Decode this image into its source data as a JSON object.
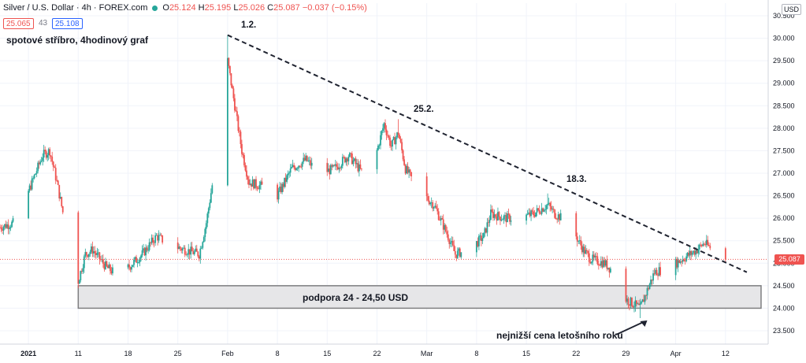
{
  "header": {
    "symbol": "Silver / U.S. Dollar · 4h · FOREX.com",
    "ohlc": {
      "o_label": "O",
      "o": "25.124",
      "h_label": "H",
      "h": "25.195",
      "l_label": "L",
      "l": "25.026",
      "c_label": "C",
      "c": "25.087",
      "change": "−0.037 (−0.15%)"
    },
    "bid": "25.065",
    "spread": "43",
    "ask": "25.108",
    "currency": "USD",
    "last_price": "25.087"
  },
  "annotations": {
    "chart_title": "spotové stříbro, 4hodinový graf",
    "peak1": "1.2.",
    "peak2": "25.2.",
    "peak3": "18.3.",
    "support": "podpora 24 - 24,50 USD",
    "low": "nejnižší cena letošního roku"
  },
  "colors": {
    "up": "#26a69a",
    "down": "#ef5350",
    "support_fill": "#e6e6e8",
    "support_border": "#7e7e80",
    "trendline": "#1f2330",
    "last_price_line": "#ef5350"
  },
  "chart_data": {
    "type": "candlestick",
    "timeframe": "4h",
    "y_axis": {
      "min": 23.5,
      "max": 30.5,
      "ticks": [
        "30.500",
        "30.000",
        "29.500",
        "29.000",
        "28.500",
        "28.000",
        "27.500",
        "27.000",
        "26.500",
        "26.000",
        "25.500",
        "25.000",
        "24.500",
        "24.000",
        "23.500"
      ]
    },
    "x_axis": {
      "start": "2020-12-31",
      "end": "2021-04-18",
      "ticks": [
        {
          "label": "2021",
          "date": "2021-01-04"
        },
        {
          "label": "11",
          "date": "2021-01-11"
        },
        {
          "label": "18",
          "date": "2021-01-18"
        },
        {
          "label": "25",
          "date": "2021-01-25"
        },
        {
          "label": "Feb",
          "date": "2021-02-01"
        },
        {
          "label": "8",
          "date": "2021-02-08"
        },
        {
          "label": "15",
          "date": "2021-02-15"
        },
        {
          "label": "22",
          "date": "2021-02-22"
        },
        {
          "label": "Mar",
          "date": "2021-03-01"
        },
        {
          "label": "8",
          "date": "2021-03-08"
        },
        {
          "label": "15",
          "date": "2021-03-15"
        },
        {
          "label": "22",
          "date": "2021-03-22"
        },
        {
          "label": "29",
          "date": "2021-03-29"
        },
        {
          "label": "Apr",
          "date": "2021-04-05"
        },
        {
          "label": "12",
          "date": "2021-04-12"
        }
      ]
    },
    "price_path": [
      {
        "date": "2020-12-31",
        "close": 25.8
      },
      {
        "date": "2021-01-02",
        "close": 25.9
      },
      {
        "date": "2021-01-04",
        "close": 26.6
      },
      {
        "date": "2021-01-06",
        "close": 27.4
      },
      {
        "date": "2021-01-07",
        "close": 27.5
      },
      {
        "date": "2021-01-08",
        "close": 26.8
      },
      {
        "date": "2021-01-09",
        "close": 26.0
      },
      {
        "date": "2021-01-10",
        "close": 25.0
      },
      {
        "date": "2021-01-11",
        "close": 24.6
      },
      {
        "date": "2021-01-12",
        "close": 25.2
      },
      {
        "date": "2021-01-13",
        "close": 25.3
      },
      {
        "date": "2021-01-15",
        "close": 24.9
      },
      {
        "date": "2021-01-17",
        "close": 24.7
      },
      {
        "date": "2021-01-18",
        "close": 24.9
      },
      {
        "date": "2021-01-20",
        "close": 25.2
      },
      {
        "date": "2021-01-22",
        "close": 25.6
      },
      {
        "date": "2021-01-24",
        "close": 25.4
      },
      {
        "date": "2021-01-26",
        "close": 25.3
      },
      {
        "date": "2021-01-28",
        "close": 25.2
      },
      {
        "date": "2021-01-29",
        "close": 25.9
      },
      {
        "date": "2021-01-30",
        "close": 26.9
      },
      {
        "date": "2021-02-01",
        "close": 29.5
      },
      {
        "date": "2021-02-02",
        "close": 28.5
      },
      {
        "date": "2021-02-03",
        "close": 27.5
      },
      {
        "date": "2021-02-04",
        "close": 26.8
      },
      {
        "date": "2021-02-06",
        "close": 26.7
      },
      {
        "date": "2021-02-08",
        "close": 26.5
      },
      {
        "date": "2021-02-10",
        "close": 27.1
      },
      {
        "date": "2021-02-12",
        "close": 27.3
      },
      {
        "date": "2021-02-14",
        "close": 27.0
      },
      {
        "date": "2021-02-16",
        "close": 27.1
      },
      {
        "date": "2021-02-18",
        "close": 27.4
      },
      {
        "date": "2021-02-20",
        "close": 27.0
      },
      {
        "date": "2021-02-22",
        "close": 27.5
      },
      {
        "date": "2021-02-23",
        "close": 28.1
      },
      {
        "date": "2021-02-24",
        "close": 27.6
      },
      {
        "date": "2021-02-25",
        "close": 27.9
      },
      {
        "date": "2021-02-26",
        "close": 27.1
      },
      {
        "date": "2021-02-28",
        "close": 26.6
      },
      {
        "date": "2021-03-02",
        "close": 26.3
      },
      {
        "date": "2021-03-04",
        "close": 25.6
      },
      {
        "date": "2021-03-05",
        "close": 25.2
      },
      {
        "date": "2021-03-07",
        "close": 25.3
      },
      {
        "date": "2021-03-09",
        "close": 25.6
      },
      {
        "date": "2021-03-10",
        "close": 26.1
      },
      {
        "date": "2021-03-12",
        "close": 26.0
      },
      {
        "date": "2021-03-14",
        "close": 26.0
      },
      {
        "date": "2021-03-16",
        "close": 26.1
      },
      {
        "date": "2021-03-18",
        "close": 26.3
      },
      {
        "date": "2021-03-19",
        "close": 26.1
      },
      {
        "date": "2021-03-21",
        "close": 25.9
      },
      {
        "date": "2021-03-23",
        "close": 25.3
      },
      {
        "date": "2021-03-24",
        "close": 25.1
      },
      {
        "date": "2021-03-26",
        "close": 25.0
      },
      {
        "date": "2021-03-28",
        "close": 24.7
      },
      {
        "date": "2021-03-29",
        "close": 24.2
      },
      {
        "date": "2021-03-31",
        "close": 24.0
      },
      {
        "date": "2021-04-01",
        "close": 24.4
      },
      {
        "date": "2021-04-02",
        "close": 24.8
      },
      {
        "date": "2021-04-04",
        "close": 24.9
      },
      {
        "date": "2021-04-06",
        "close": 25.1
      },
      {
        "date": "2021-04-08",
        "close": 25.3
      },
      {
        "date": "2021-04-09",
        "close": 25.45
      },
      {
        "date": "2021-04-11",
        "close": 25.2
      },
      {
        "date": "2021-04-12",
        "close": 25.087
      }
    ],
    "peaks": [
      {
        "date": "2021-02-01",
        "high": 30.07
      },
      {
        "date": "2021-02-25",
        "high": 28.2
      },
      {
        "date": "2021-03-18",
        "high": 26.55
      }
    ],
    "year_low": {
      "date": "2021-03-31",
      "low": 23.78
    },
    "trendline": {
      "from": {
        "date": "2021-02-01",
        "price": 30.07
      },
      "to": {
        "date": "2021-04-15",
        "price": 24.8
      }
    },
    "support_zone": {
      "from": 24.0,
      "to": 24.5,
      "start": "2021-01-11",
      "end": "2021-04-17"
    },
    "last_price": 25.087
  }
}
